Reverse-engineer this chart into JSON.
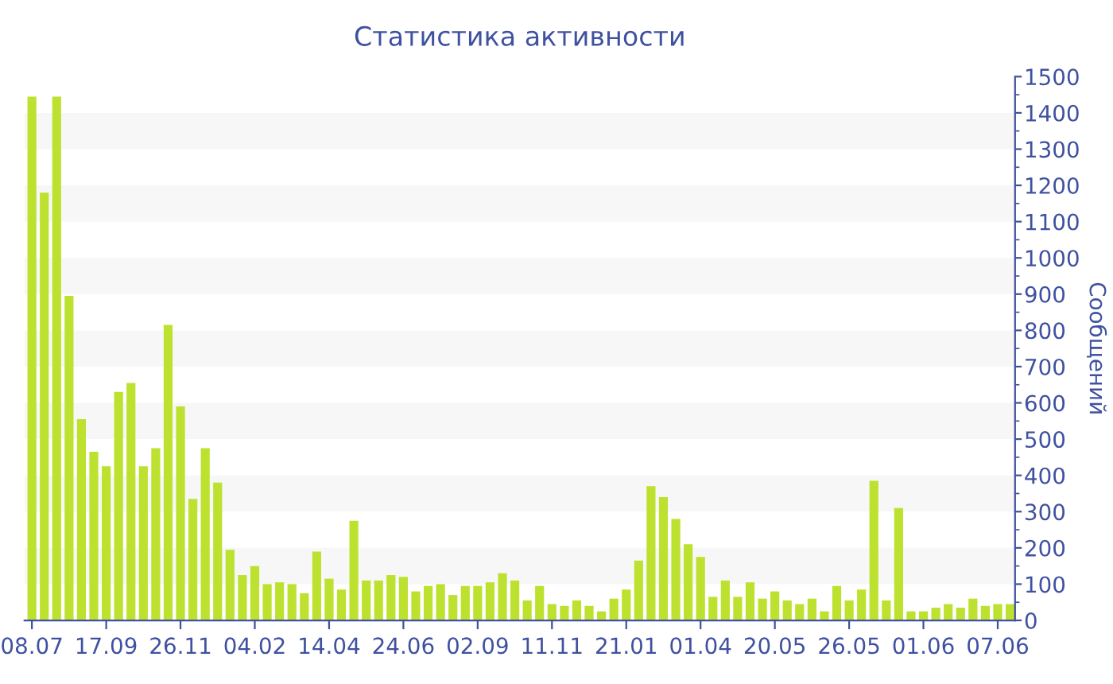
{
  "chart_data": {
    "type": "bar",
    "title": "Статистика активности",
    "ylabel": "Сообщений",
    "categories": [
      "08.07",
      null,
      null,
      null,
      null,
      null,
      "17.09",
      null,
      null,
      null,
      null,
      null,
      "26.11",
      null,
      null,
      null,
      null,
      null,
      "04.02",
      null,
      null,
      null,
      null,
      null,
      "14.04",
      null,
      null,
      null,
      null,
      null,
      "24.06",
      null,
      null,
      null,
      null,
      null,
      "02.09",
      null,
      null,
      null,
      null,
      null,
      "11.11",
      null,
      null,
      null,
      null,
      null,
      "21.01",
      null,
      null,
      null,
      null,
      null,
      "01.04",
      null,
      null,
      null,
      null,
      null,
      "20.05",
      null,
      null,
      null,
      null,
      null,
      "26.05",
      null,
      null,
      null,
      null,
      null,
      "01.06",
      null,
      null,
      null,
      null,
      null,
      "07.06",
      null
    ],
    "values": [
      1445,
      1180,
      1445,
      895,
      555,
      465,
      425,
      630,
      655,
      425,
      475,
      815,
      590,
      335,
      475,
      380,
      195,
      125,
      150,
      100,
      105,
      100,
      75,
      190,
      115,
      85,
      275,
      110,
      110,
      125,
      120,
      80,
      95,
      100,
      70,
      95,
      95,
      105,
      130,
      110,
      55,
      95,
      45,
      40,
      55,
      40,
      25,
      60,
      85,
      165,
      370,
      340,
      280,
      210,
      175,
      65,
      110,
      65,
      105,
      60,
      80,
      55,
      45,
      60,
      25,
      95,
      55,
      85,
      385,
      55,
      310,
      25,
      25,
      35,
      45,
      35,
      60,
      40,
      45,
      45
    ],
    "color": "#bde12f",
    "ylim": [
      0,
      1500
    ],
    "yticks": [
      0,
      100,
      200,
      300,
      400,
      500,
      600,
      700,
      800,
      900,
      1000,
      1100,
      1200,
      1300,
      1400,
      1500
    ],
    "bands": [
      {
        "axis": "y",
        "from": 100,
        "to": 200,
        "color": "#f7f7f7"
      },
      {
        "axis": "y",
        "from": 300,
        "to": 400,
        "color": "#f7f7f7"
      },
      {
        "axis": "y",
        "from": 500,
        "to": 600,
        "color": "#f7f7f7"
      },
      {
        "axis": "y",
        "from": 700,
        "to": 800,
        "color": "#f7f7f7"
      },
      {
        "axis": "y",
        "from": 900,
        "to": 1000,
        "color": "#f7f7f7"
      },
      {
        "axis": "y",
        "from": 1100,
        "to": 1200,
        "color": "#f7f7f7"
      },
      {
        "axis": "y",
        "from": 1300,
        "to": 1400,
        "color": "#f7f7f7"
      }
    ],
    "grid": false,
    "legend": false
  }
}
